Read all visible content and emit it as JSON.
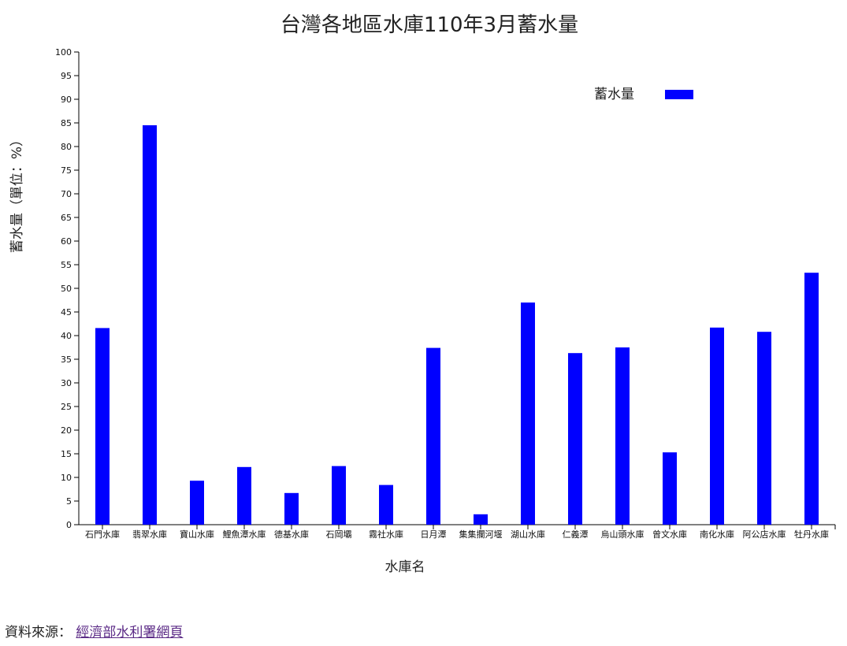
{
  "chart_data": {
    "type": "bar",
    "title": "台灣各地區水庫110年3月蓄水量",
    "xlabel": "水庫名",
    "ylabel": "蓄水量（單位：%）",
    "ylim": [
      0,
      100
    ],
    "ytick_step": 5,
    "grid": false,
    "legend_position": "top-right",
    "bar_color": "#0000ff",
    "categories": [
      "石門水庫",
      "翡翠水庫",
      "寶山水庫",
      "鯉魚潭水庫",
      "德基水庫",
      "石岡壩",
      "霧社水庫",
      "日月潭",
      "集集攔河堰",
      "湖山水庫",
      "仁義潭",
      "烏山頭水庫",
      "曾文水庫",
      "南化水庫",
      "阿公店水庫",
      "牡丹水庫"
    ],
    "series": [
      {
        "name": "蓄水量",
        "values": [
          41.6,
          84.5,
          9.3,
          12.2,
          6.7,
          12.4,
          8.4,
          37.4,
          2.2,
          47.0,
          36.3,
          37.5,
          15.3,
          41.7,
          40.8,
          53.3
        ]
      }
    ]
  },
  "footer": {
    "label": "資料來源：",
    "link_text": "經濟部水利署網頁"
  }
}
